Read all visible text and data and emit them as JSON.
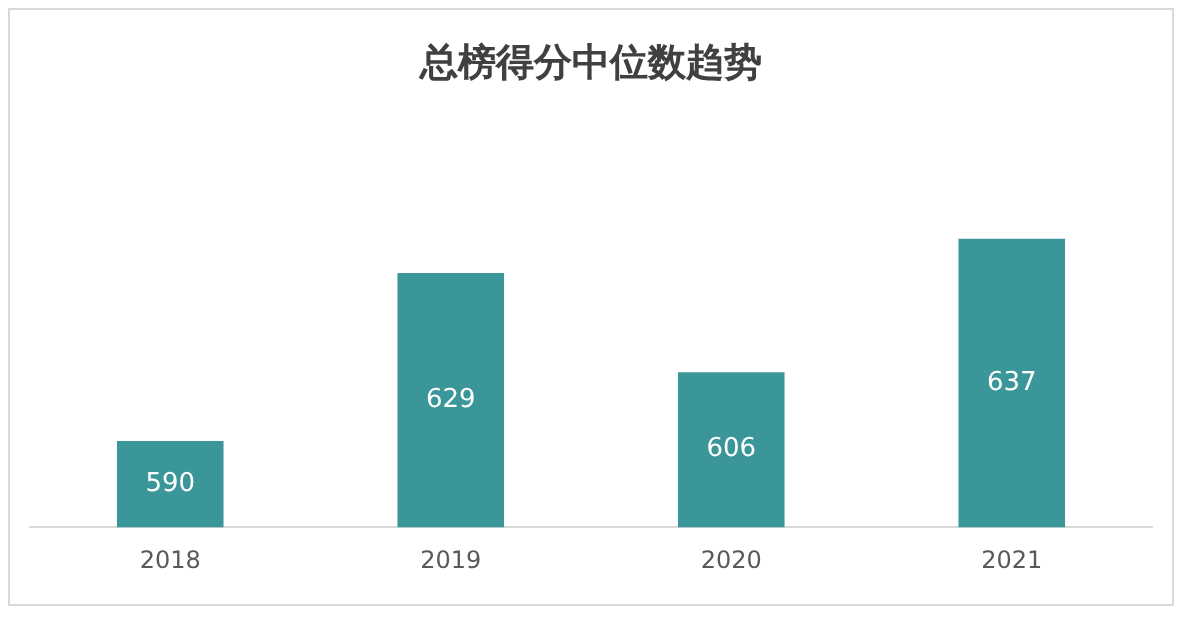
{
  "chart_data": {
    "type": "bar",
    "title": "总榜得分中位数趋势",
    "categories": [
      "2018",
      "2019",
      "2020",
      "2021"
    ],
    "values": [
      590,
      629,
      606,
      637
    ],
    "color": "#3a9698",
    "tick_labels": "x",
    "data_labels": true,
    "grid": false,
    "legend": false
  }
}
